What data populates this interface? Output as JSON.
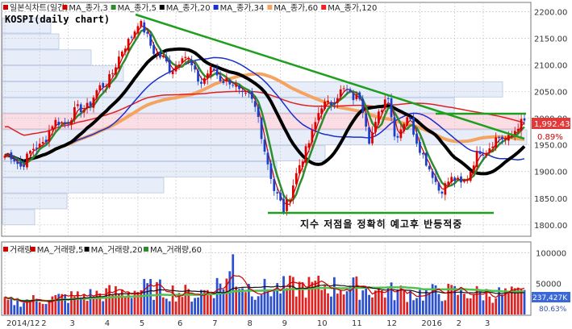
{
  "chart_data": [
    {
      "type": "candlestick",
      "title": "KOSPI(daily chart)",
      "legend": [
        {
          "label": "일본식차트(일간)",
          "color": "#cc0000"
        },
        {
          "label": "MA_종가,3",
          "color": "#cc0000"
        },
        {
          "label": "MA_종가,5",
          "color": "#2e8b2e"
        },
        {
          "label": "MA_종가,20",
          "color": "#000000"
        },
        {
          "label": "MA_종가,34",
          "color": "#1a2fcc"
        },
        {
          "label": "MA_종가,60",
          "color": "#f4a460"
        },
        {
          "label": "MA_종가,120",
          "color": "#ee2222"
        }
      ],
      "ylim": [
        1780,
        2210
      ],
      "yticks": [
        "2200.00",
        "2150.00",
        "2100.00",
        "2050.00",
        "2000.00",
        "1950.00",
        "1900.00",
        "1850.00",
        "1800.00"
      ],
      "ytick_values": [
        2200,
        2150,
        2100,
        2050,
        2000,
        1950,
        1900,
        1850,
        1800
      ],
      "xticks": [
        "2014/12",
        "2",
        "3",
        "4",
        "5",
        "6",
        "7",
        "8",
        "9",
        "10",
        "11",
        "12",
        "2016",
        "2",
        "3"
      ],
      "xtick_index": [
        0,
        11,
        20,
        31,
        42,
        54,
        65,
        76,
        87,
        98,
        109,
        120,
        131,
        142,
        151
      ],
      "n_days": 165,
      "close_path": [
        [
          0,
          1930
        ],
        [
          5,
          1915
        ],
        [
          11,
          1950
        ],
        [
          15,
          1985
        ],
        [
          20,
          2000
        ],
        [
          25,
          2020
        ],
        [
          31,
          2060
        ],
        [
          36,
          2110
        ],
        [
          40,
          2160
        ],
        [
          42,
          2180
        ],
        [
          46,
          2140
        ],
        [
          52,
          2090
        ],
        [
          56,
          2120
        ],
        [
          62,
          2070
        ],
        [
          66,
          2090
        ],
        [
          72,
          2060
        ],
        [
          77,
          2040
        ],
        [
          80,
          2000
        ],
        [
          83,
          1920
        ],
        [
          85,
          1860
        ],
        [
          88,
          1830
        ],
        [
          92,
          1890
        ],
        [
          96,
          1960
        ],
        [
          100,
          2020
        ],
        [
          104,
          2040
        ],
        [
          108,
          2050
        ],
        [
          112,
          2040
        ],
        [
          115,
          1960
        ],
        [
          118,
          2010
        ],
        [
          121,
          2040
        ],
        [
          123,
          1970
        ],
        [
          127,
          2000
        ],
        [
          131,
          1950
        ],
        [
          134,
          1900
        ],
        [
          137,
          1870
        ],
        [
          140,
          1880
        ],
        [
          144,
          1880
        ],
        [
          147,
          1900
        ],
        [
          150,
          1940
        ],
        [
          153,
          1950
        ],
        [
          156,
          1960
        ],
        [
          160,
          1970
        ],
        [
          164,
          1992.43
        ]
      ],
      "price_label": "1,992.43",
      "change_label": "0.89%",
      "annotation": "지수 저점을 정확히 예고후 반등적중"
    },
    {
      "type": "bar",
      "title": "",
      "legend": [
        {
          "label": "거래량",
          "color": "#cc0000"
        },
        {
          "label": "MA_거래량,5",
          "color": "#cc0000"
        },
        {
          "label": "MA_거래량,20",
          "color": "#000000"
        },
        {
          "label": "MA_거래량,60",
          "color": "#2e8b2e"
        }
      ],
      "ylim": [
        0,
        115000
      ],
      "yticks": [
        "100000",
        "50000"
      ],
      "ytick_values": [
        100000,
        50000
      ],
      "volume_path": [
        [
          0,
          20000
        ],
        [
          10,
          24000
        ],
        [
          20,
          28000
        ],
        [
          30,
          33000
        ],
        [
          40,
          38000
        ],
        [
          45,
          42000
        ],
        [
          52,
          38000
        ],
        [
          60,
          32000
        ],
        [
          65,
          42000
        ],
        [
          70,
          56000
        ],
        [
          72,
          65000
        ],
        [
          75,
          48000
        ],
        [
          80,
          40000
        ],
        [
          90,
          44000
        ],
        [
          100,
          46000
        ],
        [
          110,
          44000
        ],
        [
          120,
          38000
        ],
        [
          130,
          34000
        ],
        [
          140,
          36000
        ],
        [
          150,
          34000
        ],
        [
          164,
          32000
        ]
      ],
      "volume_label": "237,427K",
      "volume_pct_label": "80.63%"
    }
  ]
}
